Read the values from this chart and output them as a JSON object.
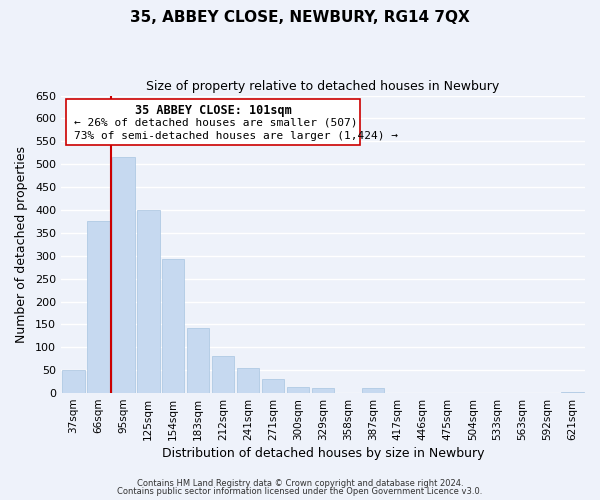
{
  "title": "35, ABBEY CLOSE, NEWBURY, RG14 7QX",
  "subtitle": "Size of property relative to detached houses in Newbury",
  "xlabel": "Distribution of detached houses by size in Newbury",
  "ylabel": "Number of detached properties",
  "bar_labels": [
    "37sqm",
    "66sqm",
    "95sqm",
    "125sqm",
    "154sqm",
    "183sqm",
    "212sqm",
    "241sqm",
    "271sqm",
    "300sqm",
    "329sqm",
    "358sqm",
    "387sqm",
    "417sqm",
    "446sqm",
    "475sqm",
    "504sqm",
    "533sqm",
    "563sqm",
    "592sqm",
    "621sqm"
  ],
  "bar_values": [
    50,
    375,
    515,
    400,
    293,
    143,
    82,
    55,
    30,
    13,
    10,
    0,
    10,
    0,
    0,
    0,
    0,
    0,
    0,
    0,
    3
  ],
  "bar_color": "#c6d9f0",
  "bar_edge_color": "#a8c4e0",
  "vline_x_index": 2,
  "vline_color": "#cc0000",
  "annotation_title": "35 ABBEY CLOSE: 101sqm",
  "annotation_line1": "← 26% of detached houses are smaller (507)",
  "annotation_line2": "73% of semi-detached houses are larger (1,424) →",
  "annotation_box_color": "#ffffff",
  "annotation_box_edge": "#cc0000",
  "ylim": [
    0,
    650
  ],
  "yticks": [
    0,
    50,
    100,
    150,
    200,
    250,
    300,
    350,
    400,
    450,
    500,
    550,
    600,
    650
  ],
  "footer1": "Contains HM Land Registry data © Crown copyright and database right 2024.",
  "footer2": "Contains public sector information licensed under the Open Government Licence v3.0.",
  "bg_color": "#eef2fa",
  "plot_bg_color": "#eef2fa",
  "grid_color": "#ffffff",
  "title_fontsize": 11,
  "subtitle_fontsize": 9
}
